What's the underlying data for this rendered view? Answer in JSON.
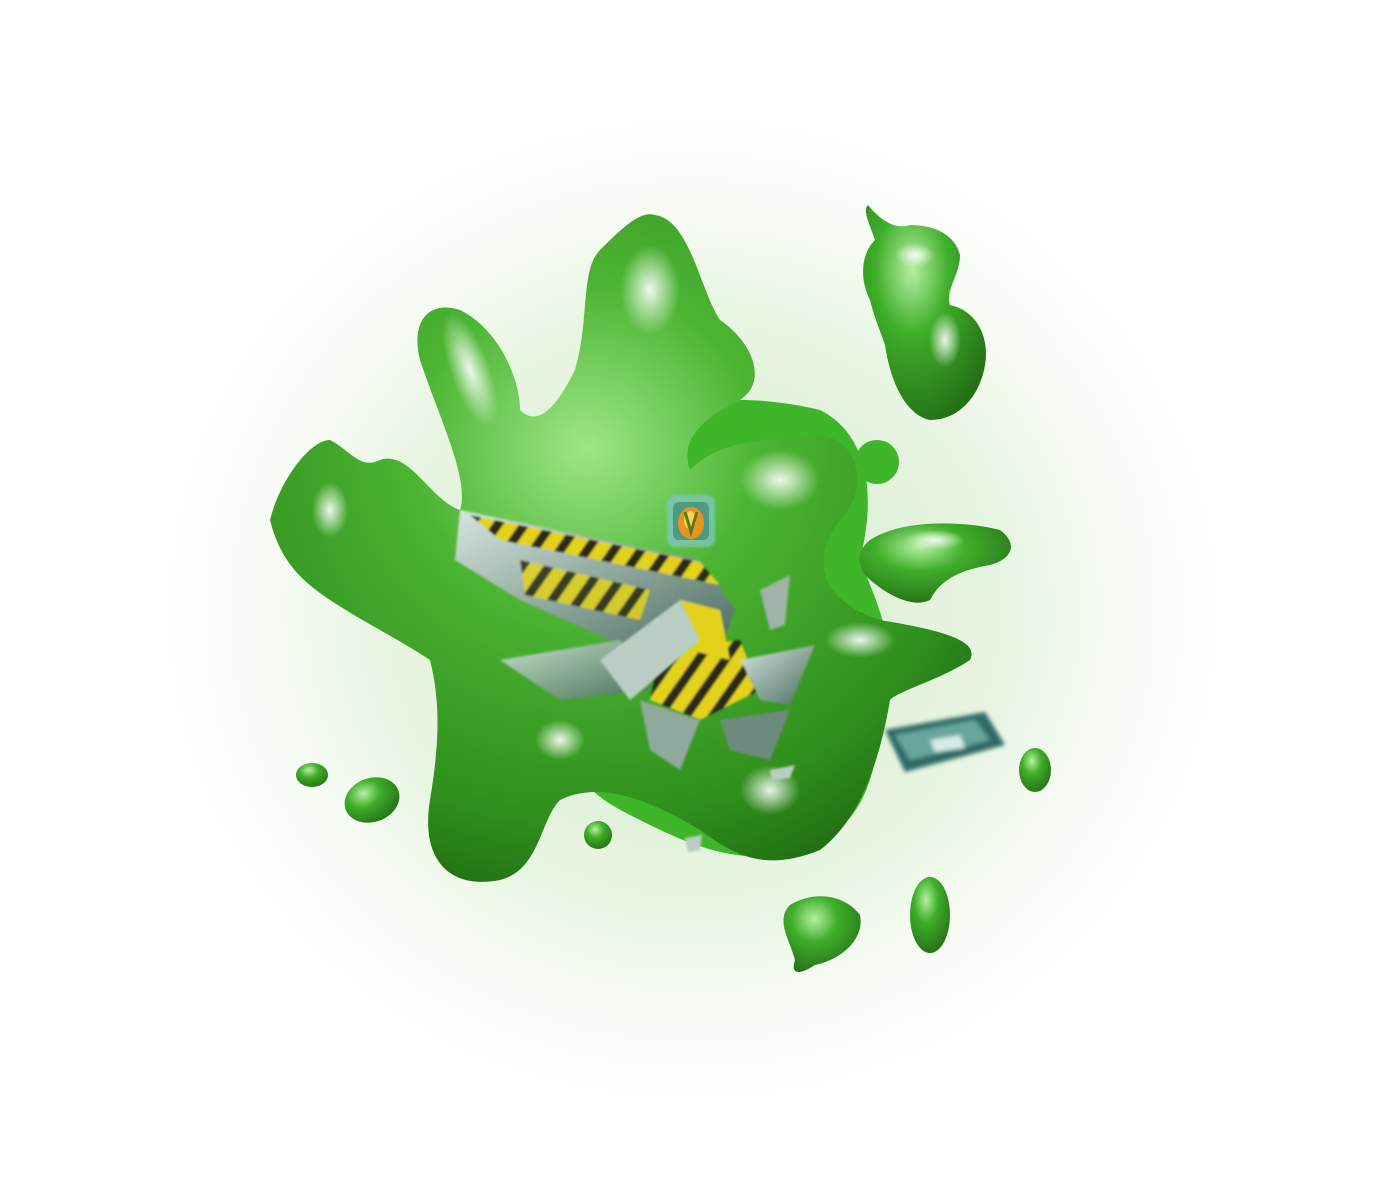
{
  "scene": {
    "subject": "slime-explosion-sprite",
    "colors": {
      "background": "#ffffff",
      "glow": "#cfe9c4",
      "slime_dark": "#2f8f1c",
      "slime_mid": "#3fae2a",
      "slime_light": "#7fd86a",
      "slime_highlight": "#e9ffe2",
      "debris_metal": "#9fb3a8",
      "debris_teal": "#2f6b66",
      "hazard_yellow": "#e3d21a",
      "hazard_black": "#2a2a12",
      "core_orange": "#e8941f"
    },
    "elements": [
      {
        "name": "slime-main-blob",
        "kind": "slime"
      },
      {
        "name": "slime-upper-right-blob",
        "kind": "slime"
      },
      {
        "name": "slime-right-arm",
        "kind": "slime"
      },
      {
        "name": "slime-droplet",
        "kind": "slime",
        "count": 7
      },
      {
        "name": "debris-hazard-panel",
        "kind": "debris"
      },
      {
        "name": "debris-teal-block",
        "kind": "debris"
      },
      {
        "name": "debris-shards",
        "kind": "debris"
      },
      {
        "name": "glowing-core-icon",
        "kind": "core"
      }
    ]
  }
}
